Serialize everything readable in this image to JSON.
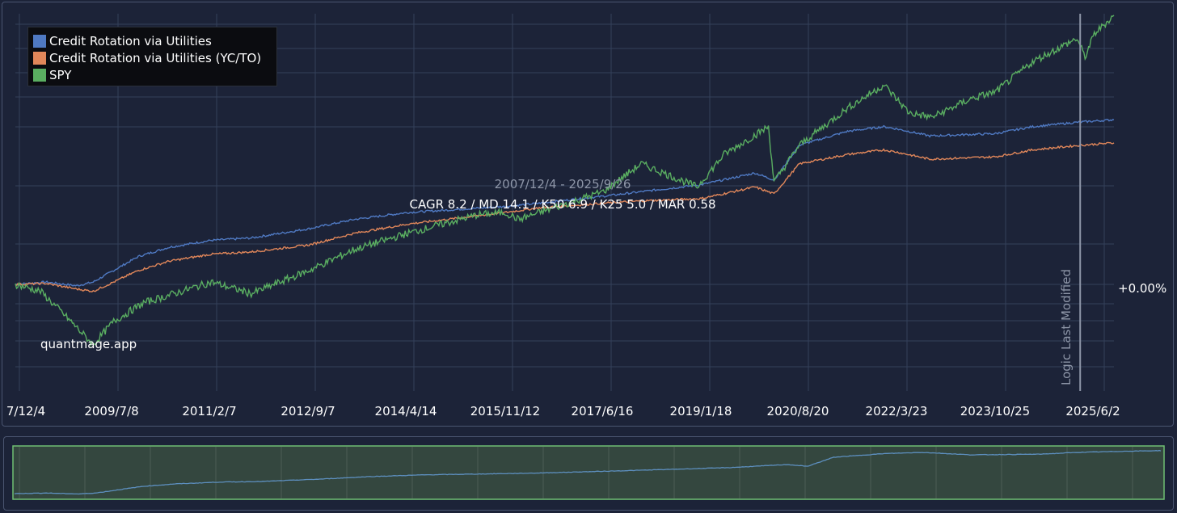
{
  "chart_data": {
    "type": "line",
    "date_range": "2007/12/4 - 2025/9/26",
    "stats": "CAGR 8.2 / MD 14.1 / K50 6.9 / K25 5.0 / MAR 0.58",
    "watermark": "quantmage.app",
    "baseline_label": "+0.00%",
    "marker_label": "Logic Last Modified",
    "x_tick_labels": [
      "7/12/4",
      "2009/7/8",
      "2011/2/7",
      "2012/9/7",
      "2014/4/14",
      "2015/11/12",
      "2017/6/16",
      "2019/1/18",
      "2020/8/20",
      "2022/3/23",
      "2023/10/25",
      "2025/6/2"
    ],
    "x_range": [
      "2007-12-04",
      "2025-09-26"
    ],
    "marker_date": "2025-03-10",
    "grid": true,
    "legend_position": "top-left",
    "series": [
      {
        "name": "Credit Rotation via Utilities",
        "color": "#4f79c2",
        "x": [
          "2007-12-04",
          "2008-06-01",
          "2008-12-01",
          "2009-03-09",
          "2009-07-08",
          "2009-12-01",
          "2010-06-01",
          "2011-02-07",
          "2011-10-01",
          "2012-09-07",
          "2013-06-01",
          "2014-04-14",
          "2014-12-01",
          "2015-11-12",
          "2016-06-01",
          "2017-06-16",
          "2018-02-01",
          "2019-01-18",
          "2019-12-01",
          "2020-03-23",
          "2020-08-20",
          "2021-06-01",
          "2022-01-01",
          "2022-03-23",
          "2022-10-01",
          "2023-10-25",
          "2024-06-01",
          "2025-03-10",
          "2025-09-26"
        ],
        "y": [
          0.0,
          0.5,
          -0.3,
          0.5,
          3.0,
          6.0,
          8.0,
          9.5,
          10.0,
          12.0,
          14.0,
          15.5,
          16.0,
          16.8,
          17.5,
          19.0,
          20.0,
          21.5,
          24.0,
          22.5,
          30.0,
          33.0,
          34.0,
          33.5,
          32.0,
          32.5,
          34.0,
          35.0,
          35.5
        ]
      },
      {
        "name": "Credit Rotation via Utilities (YC/TO)",
        "color": "#e1875a",
        "x": [
          "2007-12-04",
          "2008-06-01",
          "2008-12-01",
          "2009-03-09",
          "2009-07-08",
          "2009-12-01",
          "2010-06-01",
          "2011-02-07",
          "2011-10-01",
          "2012-09-07",
          "2013-06-01",
          "2014-04-14",
          "2014-12-01",
          "2015-11-12",
          "2016-06-01",
          "2017-06-16",
          "2018-02-01",
          "2019-01-18",
          "2019-12-01",
          "2020-03-23",
          "2020-08-20",
          "2021-06-01",
          "2022-01-01",
          "2022-03-23",
          "2022-10-01",
          "2023-10-25",
          "2024-06-01",
          "2025-03-10",
          "2025-09-26"
        ],
        "y": [
          0.0,
          0.2,
          -1.0,
          -1.5,
          0.5,
          3.0,
          5.0,
          6.5,
          7.0,
          8.5,
          11.0,
          13.0,
          14.0,
          15.5,
          16.5,
          17.5,
          18.0,
          18.5,
          21.0,
          19.5,
          26.0,
          28.0,
          29.0,
          28.5,
          27.0,
          27.5,
          29.0,
          30.0,
          30.5
        ]
      },
      {
        "name": "SPY",
        "color": "#5aae61",
        "x": [
          "2007-12-04",
          "2008-05-01",
          "2008-10-01",
          "2009-03-09",
          "2009-07-08",
          "2010-01-01",
          "2010-07-01",
          "2011-02-07",
          "2011-10-01",
          "2012-09-07",
          "2013-06-01",
          "2014-04-14",
          "2015-06-01",
          "2015-11-12",
          "2016-02-01",
          "2017-06-16",
          "2018-01-26",
          "2018-12-24",
          "2019-06-01",
          "2020-02-19",
          "2020-03-23",
          "2020-08-20",
          "2021-06-01",
          "2022-01-03",
          "2022-06-01",
          "2022-10-12",
          "2023-06-01",
          "2023-10-25",
          "2024-06-01",
          "2025-02-19",
          "2025-04-08",
          "2025-06-02",
          "2025-09-26"
        ],
        "y": [
          0.0,
          -1.5,
          -7.0,
          -13.0,
          -8.0,
          -4.0,
          -2.0,
          0.5,
          -2.0,
          3.0,
          7.5,
          11.0,
          15.0,
          15.5,
          14.0,
          20.0,
          26.0,
          21.0,
          28.0,
          34.0,
          22.0,
          30.0,
          38.0,
          43.0,
          37.0,
          36.0,
          40.0,
          41.5,
          48.0,
          53.0,
          49.0,
          54.0,
          58.0
        ]
      }
    ]
  },
  "navigator": {
    "series_color": "#5d8fbf"
  }
}
